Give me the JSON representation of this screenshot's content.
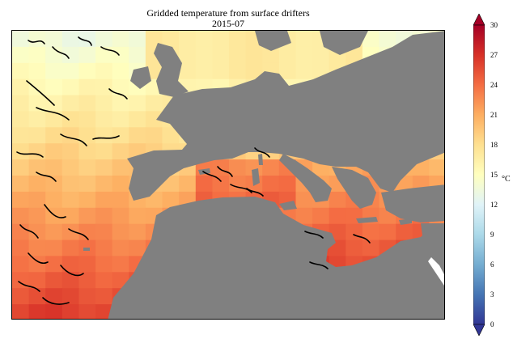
{
  "map": {
    "title": "Gridded temperature from surface drifters",
    "subtitle": "2015-07",
    "land_color": "#808080",
    "grid_cell_count_x": 26,
    "grid_cell_count_y": 18
  },
  "colorbar": {
    "units": "°C",
    "min": 0,
    "max": 30,
    "ticks": [
      "30",
      "27",
      "24",
      "21",
      "18",
      "15",
      "12",
      "9",
      "6",
      "3",
      "0"
    ],
    "colormap": "RdYlBu_r",
    "colors": [
      "#313695",
      "#4575b4",
      "#74add1",
      "#abd9e9",
      "#e0f3f8",
      "#ffffbf",
      "#fee090",
      "#fdae61",
      "#f46d43",
      "#d73027",
      "#a50026"
    ]
  }
}
